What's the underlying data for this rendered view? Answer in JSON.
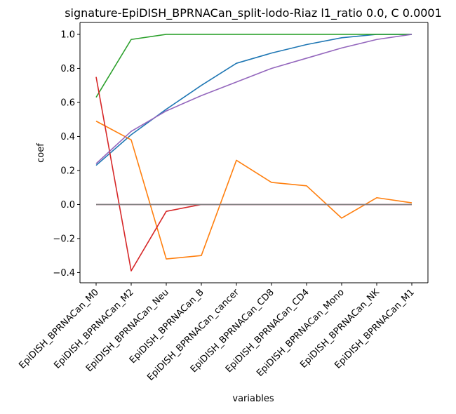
{
  "chart_data": {
    "type": "line",
    "title": "signature-EpiDISH_BPRNACan_split-lodo-Riaz l1_ratio 0.0, C 0.0001",
    "xlabel": "variables",
    "ylabel": "coef",
    "ylim": [
      -0.46,
      1.07
    ],
    "yticks": [
      -0.4,
      -0.2,
      0.0,
      0.2,
      0.4,
      0.6,
      0.8,
      1.0
    ],
    "ytick_labels": [
      "−0.4",
      "−0.2",
      "0.0",
      "0.2",
      "0.4",
      "0.6",
      "0.8",
      "1.0"
    ],
    "categories": [
      "EpiDISH_BPRNACan_M0",
      "EpiDISH_BPRNACan_M2",
      "EpiDISH_BPRNACan_Neu",
      "EpiDISH_BPRNACan_B",
      "EpiDISH_BPRNACan_cancer",
      "EpiDISH_BPRNACan_CD8",
      "EpiDISH_BPRNACan_CD4",
      "EpiDISH_BPRNACan_Mono",
      "EpiDISH_BPRNACan_NK",
      "EpiDISH_BPRNACan_M1"
    ],
    "grid": false,
    "series": [
      {
        "color": "#1f77b4",
        "values": [
          0.23,
          0.41,
          0.56,
          0.7,
          0.83,
          0.89,
          0.94,
          0.98,
          1.0,
          1.0
        ]
      },
      {
        "color": "#ff7f0e",
        "values": [
          0.49,
          0.38,
          -0.32,
          -0.3,
          0.26,
          0.13,
          0.11,
          -0.08,
          0.04,
          0.01
        ]
      },
      {
        "color": "#2ca02c",
        "values": [
          0.63,
          0.97,
          1.0,
          1.0,
          1.0,
          1.0,
          1.0,
          1.0,
          1.0,
          1.0
        ]
      },
      {
        "color": "#d62728",
        "values": [
          0.75,
          -0.39,
          -0.04,
          0.0,
          0.0,
          0.0,
          0.0,
          0.0,
          0.0,
          0.0
        ]
      },
      {
        "color": "#9467bd",
        "values": [
          0.24,
          0.43,
          0.55,
          0.64,
          0.72,
          0.8,
          0.86,
          0.92,
          0.97,
          1.0
        ]
      },
      {
        "color": "#8c564b",
        "values": [
          0.0,
          0.0,
          0.0,
          0.0,
          0.0,
          0.0,
          0.0,
          0.0,
          0.0,
          0.0
        ]
      },
      {
        "color": "#e377c2",
        "values": [
          0.0,
          0.0,
          0.0,
          0.0,
          0.0,
          0.0,
          0.0,
          0.0,
          0.0,
          0.0
        ]
      },
      {
        "color": "#7f7f7f",
        "values": [
          0.0,
          0.0,
          0.0,
          0.0,
          0.0,
          0.0,
          0.0,
          0.0,
          0.0,
          0.0
        ]
      }
    ]
  }
}
